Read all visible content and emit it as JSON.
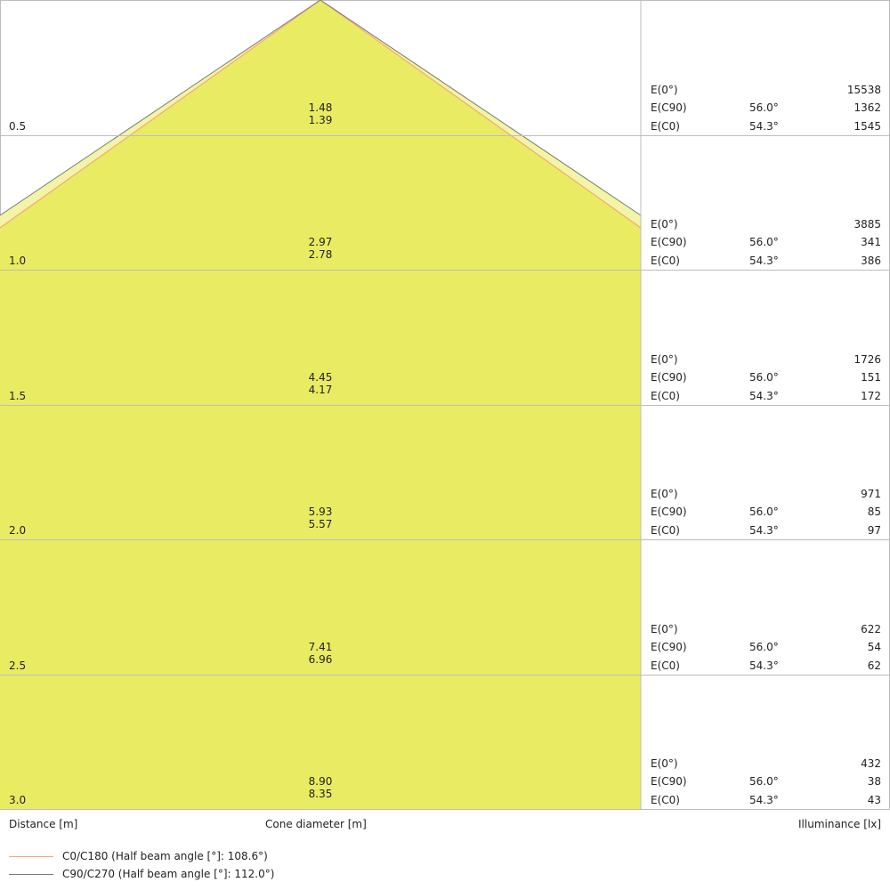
{
  "colors": {
    "cone_fill": "#e9ec63",
    "cone_band": "#f2f4a6",
    "c0_line": "#f4a77a",
    "c90_line": "#7a7a7a",
    "grid": "#bdbdbd"
  },
  "axis_labels": {
    "distance": "Distance [m]",
    "cone": "Cone diameter [m]",
    "illuminance": "Illuminance [lx]"
  },
  "legend": [
    {
      "label": "C0/C180 (Half beam angle [°]: 108.6°)",
      "color": "#f4a77a"
    },
    {
      "label": "C90/C270 (Half beam angle [°]: 112.0°)",
      "color": "#7a7a7a"
    }
  ],
  "row_labels": {
    "e0": "E(0°)",
    "ec90": "E(C90)",
    "ec0": "E(C0)"
  },
  "angles": {
    "c90": "56.0°",
    "c0": "54.3°"
  },
  "rows": [
    {
      "distance": "0.5",
      "cone_c90": "1.48",
      "cone_c0": "1.39",
      "e0": "15538",
      "ec90": "1362",
      "ec0": "1545"
    },
    {
      "distance": "1.0",
      "cone_c90": "2.97",
      "cone_c0": "2.78",
      "e0": "3885",
      "ec90": "341",
      "ec0": "386"
    },
    {
      "distance": "1.5",
      "cone_c90": "4.45",
      "cone_c0": "4.17",
      "e0": "1726",
      "ec90": "151",
      "ec0": "172"
    },
    {
      "distance": "2.0",
      "cone_c90": "5.93",
      "cone_c0": "5.57",
      "e0": "971",
      "ec90": "85",
      "ec0": "97"
    },
    {
      "distance": "2.5",
      "cone_c90": "7.41",
      "cone_c0": "6.96",
      "e0": "622",
      "ec90": "54",
      "ec0": "62"
    },
    {
      "distance": "3.0",
      "cone_c90": "8.90",
      "cone_c0": "8.35",
      "e0": "432",
      "ec90": "38",
      "ec0": "43"
    }
  ]
}
